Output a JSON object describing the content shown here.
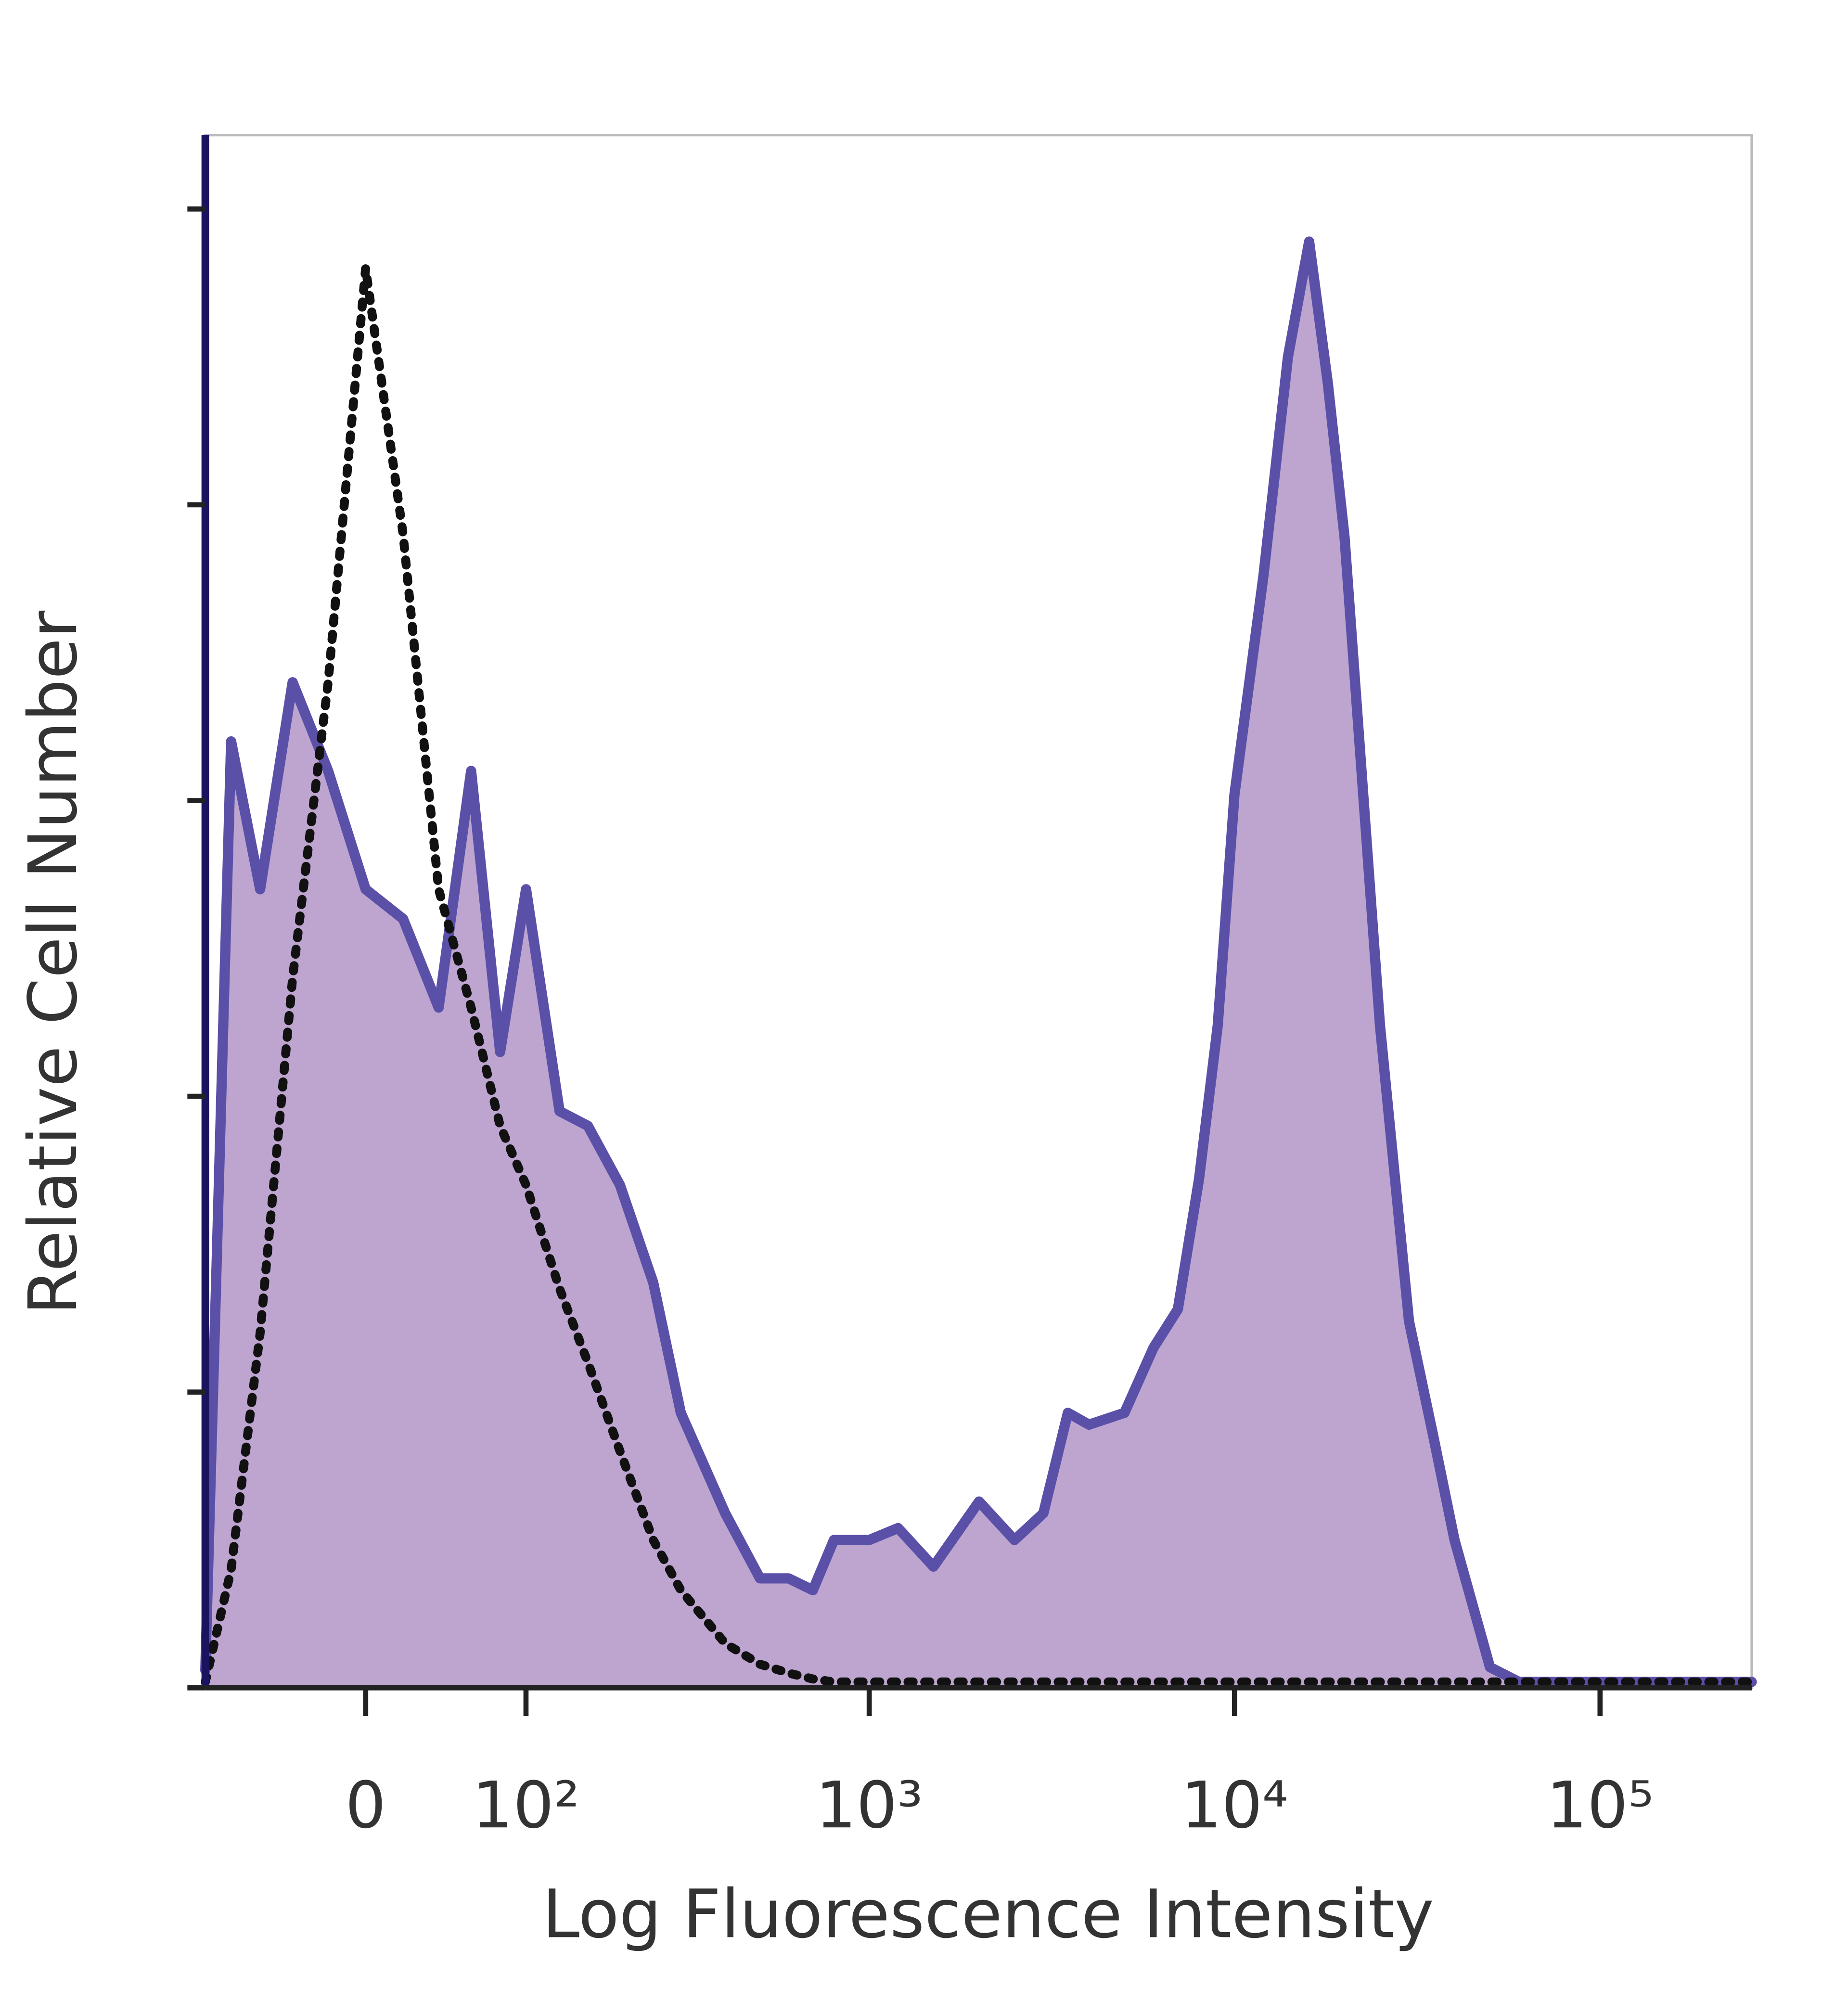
{
  "chart_data": {
    "type": "area",
    "x_label": "Log Fluorescence Intensity",
    "y_label": "Relative Cell Number",
    "xscale": "biexponential",
    "x": [
      -100,
      -80,
      -60,
      -40,
      -20,
      0,
      20,
      40,
      60,
      80,
      100,
      130,
      160,
      200,
      250,
      300,
      400,
      500,
      600,
      700,
      800,
      1000,
      1200,
      1500,
      2000,
      2500,
      3000,
      3500,
      4000,
      5000,
      6000,
      7000,
      8000,
      9000,
      10000,
      12000,
      14000,
      16000,
      18000,
      20000,
      25000,
      30000,
      35000,
      40000,
      50000,
      60000,
      80000,
      100000,
      150000,
      200000,
      260000
    ],
    "series": [
      {
        "color": "#5a50a8",
        "fill": "#bda5d0",
        "style": "solid",
        "values": [
          0.06,
          3.2,
          2.7,
          3.4,
          3.1,
          2.7,
          2.6,
          2.3,
          3.1,
          2.15,
          2.7,
          1.95,
          1.9,
          1.7,
          1.37,
          0.93,
          0.59,
          0.37,
          0.37,
          0.33,
          0.5,
          0.5,
          0.54,
          0.41,
          0.63,
          0.5,
          0.59,
          0.93,
          0.89,
          0.93,
          1.15,
          1.28,
          1.72,
          2.24,
          3.02,
          3.76,
          4.5,
          4.89,
          4.41,
          3.89,
          2.24,
          1.24,
          0.85,
          0.5,
          0.07,
          0.02,
          0.02,
          0.02,
          0.02,
          0.02,
          0.02
        ]
      },
      {
        "color": "#111111",
        "style": "dotted",
        "values": [
          0.02,
          0.4,
          1.2,
          2.4,
          3.4,
          4.8,
          3.9,
          2.7,
          2.3,
          1.9,
          1.7,
          1.35,
          1.1,
          0.8,
          0.5,
          0.33,
          0.15,
          0.08,
          0.05,
          0.03,
          0.02,
          0.02,
          0.02,
          0.02,
          0.02,
          0.02,
          0.02,
          0.02,
          0.02,
          0.02,
          0.02,
          0.02,
          0.02,
          0.02,
          0.02,
          0.02,
          0.02,
          0.02,
          0.02,
          0.02,
          0.02,
          0.02,
          0.02,
          0.02,
          0.02,
          0.02,
          0.02,
          0.02,
          0.02,
          0.02,
          0.02
        ]
      }
    ],
    "xlim": [
      -100,
      260000
    ],
    "xticks": [
      0,
      {
        "value": 100,
        "label": "10²"
      },
      {
        "value": 1000,
        "label": "10³"
      },
      {
        "value": 10000,
        "label": "10⁴"
      },
      {
        "value": 100000,
        "label": "10⁵"
      }
    ],
    "ylim": [
      0,
      5.25
    ],
    "yticks": [
      0,
      1,
      2,
      3,
      4,
      5
    ]
  }
}
